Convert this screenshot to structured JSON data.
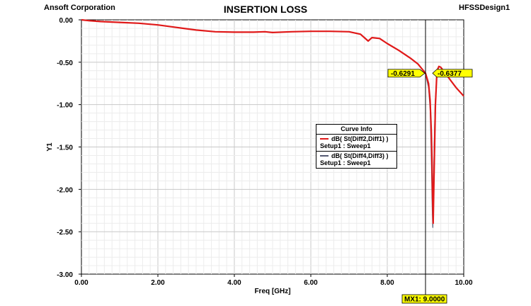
{
  "header": {
    "company": "Ansoft Corporation",
    "design": "HFSSDesign1"
  },
  "chart_data": {
    "type": "line",
    "title": "INSERTION LOSS",
    "xlabel": "Freq [GHz]",
    "ylabel": "Y1",
    "xlim": [
      0,
      10
    ],
    "ylim": [
      -3,
      0
    ],
    "x_ticks": [
      "0.00",
      "2.00",
      "4.00",
      "6.00",
      "8.00",
      "10.00"
    ],
    "y_ticks": [
      "0.00",
      "-0.50",
      "-1.00",
      "-1.50",
      "-2.00",
      "-2.50",
      "-3.00"
    ],
    "grid": true,
    "legend_title": "Curve Info",
    "series": [
      {
        "name": "dB( St(Diff2,Diff1) )",
        "setup": "Setup1 : Sweep1",
        "color": "#e01919",
        "x": [
          0,
          0.2,
          0.5,
          1.0,
          1.5,
          2.0,
          2.5,
          3.0,
          3.5,
          4.0,
          4.5,
          4.8,
          5.0,
          5.5,
          6.0,
          6.5,
          7.0,
          7.3,
          7.45,
          7.5,
          7.6,
          7.8,
          8.0,
          8.3,
          8.6,
          8.8,
          9.0,
          9.08,
          9.12,
          9.15,
          9.17,
          9.18,
          9.19,
          9.2,
          9.22,
          9.26,
          9.3,
          9.35,
          9.4,
          9.5,
          9.6,
          9.8,
          10.0
        ],
        "y": [
          0.0,
          -0.01,
          -0.02,
          -0.03,
          -0.04,
          -0.06,
          -0.09,
          -0.12,
          -0.14,
          -0.145,
          -0.145,
          -0.14,
          -0.15,
          -0.14,
          -0.135,
          -0.135,
          -0.14,
          -0.17,
          -0.23,
          -0.25,
          -0.21,
          -0.22,
          -0.28,
          -0.36,
          -0.45,
          -0.52,
          -0.6291,
          -0.75,
          -0.95,
          -1.3,
          -1.7,
          -2.0,
          -2.2,
          -2.4,
          -1.9,
          -1.0,
          -0.6,
          -0.55,
          -0.56,
          -0.62,
          -0.68,
          -0.8,
          -0.9
        ]
      },
      {
        "name": "dB( St(Diff4,Diff3) )",
        "setup": "Setup1 : Sweep1",
        "color": "#555a73",
        "x": [
          0,
          0.2,
          0.5,
          1.0,
          1.5,
          2.0,
          2.5,
          3.0,
          3.5,
          4.0,
          4.5,
          4.8,
          5.0,
          5.5,
          6.0,
          6.5,
          7.0,
          7.3,
          7.45,
          7.5,
          7.6,
          7.8,
          8.0,
          8.3,
          8.6,
          8.8,
          9.0,
          9.08,
          9.12,
          9.14,
          9.16,
          9.17,
          9.18,
          9.19,
          9.21,
          9.25,
          9.3,
          9.35,
          9.4,
          9.5,
          9.6,
          9.8,
          10.0
        ],
        "y": [
          0.0,
          -0.01,
          -0.02,
          -0.03,
          -0.04,
          -0.06,
          -0.09,
          -0.12,
          -0.14,
          -0.145,
          -0.145,
          -0.14,
          -0.15,
          -0.14,
          -0.135,
          -0.135,
          -0.14,
          -0.17,
          -0.23,
          -0.25,
          -0.21,
          -0.22,
          -0.28,
          -0.36,
          -0.45,
          -0.52,
          -0.6377,
          -0.8,
          -1.05,
          -1.4,
          -1.8,
          -2.1,
          -2.3,
          -2.45,
          -1.9,
          -1.0,
          -0.62,
          -0.55,
          -0.56,
          -0.62,
          -0.68,
          -0.8,
          -0.9
        ]
      }
    ],
    "marker": {
      "label": "MX1: 9.0000",
      "x": 9.0,
      "values": [
        "-0.6291",
        "-0.6377"
      ],
      "color": "#ffff00"
    }
  }
}
